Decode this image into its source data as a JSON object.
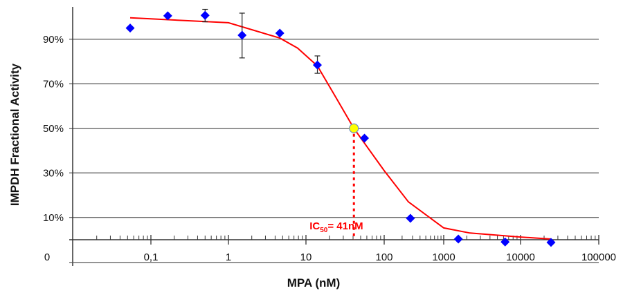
{
  "chart_data": {
    "type": "scatter",
    "xlabel": "MPA (nM)",
    "ylabel": "IMPDH Fractional Activity",
    "x_scale": "log",
    "xlim": [
      0.01,
      100000
    ],
    "ylim": [
      0,
      104
    ],
    "x_tick_labels": [
      "0,1",
      "1",
      "10",
      "100",
      "1000",
      "10000",
      "100000"
    ],
    "x_origin_label": "0",
    "y_tick_labels": [
      "10%",
      "30%",
      "50%",
      "70%",
      "90%"
    ],
    "y_ticks": [
      10,
      30,
      50,
      70,
      90
    ],
    "grid": true,
    "colors": {
      "points": "#0000ff",
      "curve": "#ff0000",
      "ic50_marker": "#ffff00",
      "annotation": "#ff0000"
    },
    "series": [
      {
        "type": "scatter",
        "marker": "diamond",
        "points": [
          {
            "x": 0.054,
            "y": 95.0
          },
          {
            "x": 0.165,
            "y": 100.5
          },
          {
            "x": 0.5,
            "y": 100.7,
            "err_low": 97.8,
            "err_high": 103.4
          },
          {
            "x": 1.5,
            "y": 91.8,
            "err_low": 81.6,
            "err_high": 101.7
          },
          {
            "x": 4.6,
            "y": 92.7
          },
          {
            "x": 14,
            "y": 78.4,
            "err_low": 74.7,
            "err_high": 82.5
          },
          {
            "x": 56,
            "y": 45.6
          },
          {
            "x": 276,
            "y": 9.6
          },
          {
            "x": 1550,
            "y": 0.3
          },
          {
            "x": 6300,
            "y": -1.0
          },
          {
            "x": 24500,
            "y": -1.2
          }
        ]
      },
      {
        "type": "line",
        "points": [
          {
            "x": 0.054,
            "y": 99.6
          },
          {
            "x": 1,
            "y": 97.4
          },
          {
            "x": 4.6,
            "y": 90.5
          },
          {
            "x": 7.8,
            "y": 86
          },
          {
            "x": 14,
            "y": 78
          },
          {
            "x": 24,
            "y": 64
          },
          {
            "x": 41,
            "y": 50
          },
          {
            "x": 100,
            "y": 31
          },
          {
            "x": 255,
            "y": 17
          },
          {
            "x": 1000,
            "y": 5.3
          },
          {
            "x": 2200,
            "y": 3.0
          },
          {
            "x": 10000,
            "y": 1.2
          },
          {
            "x": 24500,
            "y": 0.3
          }
        ]
      }
    ],
    "annotation": {
      "x": 41,
      "y": 50,
      "label_prefix": "IC",
      "label_sub": "50",
      "label_suffix": "= 41nM"
    }
  }
}
